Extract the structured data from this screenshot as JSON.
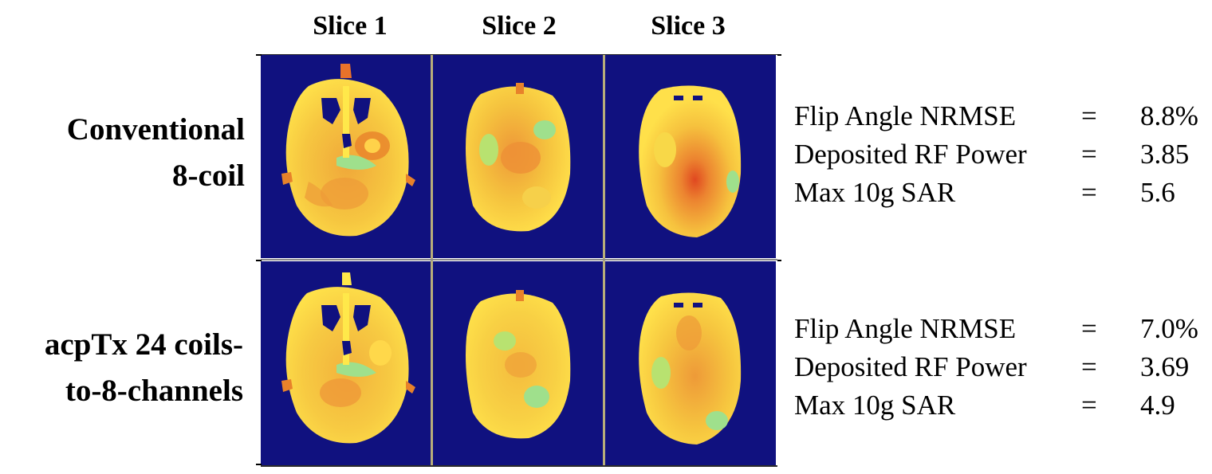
{
  "columns": [
    "Slice 1",
    "Slice 2",
    "Slice 3"
  ],
  "rows": [
    {
      "label_lines": [
        "Conventional",
        "8-coil"
      ],
      "metrics": [
        {
          "label": "Flip Angle NRMSE",
          "eq": "=",
          "value": "8.8%"
        },
        {
          "label": "Deposited RF Power",
          "eq": "=",
          "value": "3.85"
        },
        {
          "label": "Max 10g SAR",
          "eq": "=",
          "value": "5.6"
        }
      ]
    },
    {
      "label_lines": [
        "acpTx 24 coils-",
        "to-8-channels"
      ],
      "metrics": [
        {
          "label": "Flip Angle NRMSE",
          "eq": "=",
          "value": "7.0%"
        },
        {
          "label": "Deposited RF Power",
          "eq": "=",
          "value": "3.69"
        },
        {
          "label": "Max 10g SAR",
          "eq": "=",
          "value": "4.9"
        }
      ]
    }
  ],
  "colors": {
    "background_map": "#10117f",
    "brain_base": "#f5c43a",
    "brain_hot": "#e86a1e",
    "brain_cool": "#9ce08a",
    "brain_yellow": "#ffe84a",
    "hole": "#10117f"
  }
}
